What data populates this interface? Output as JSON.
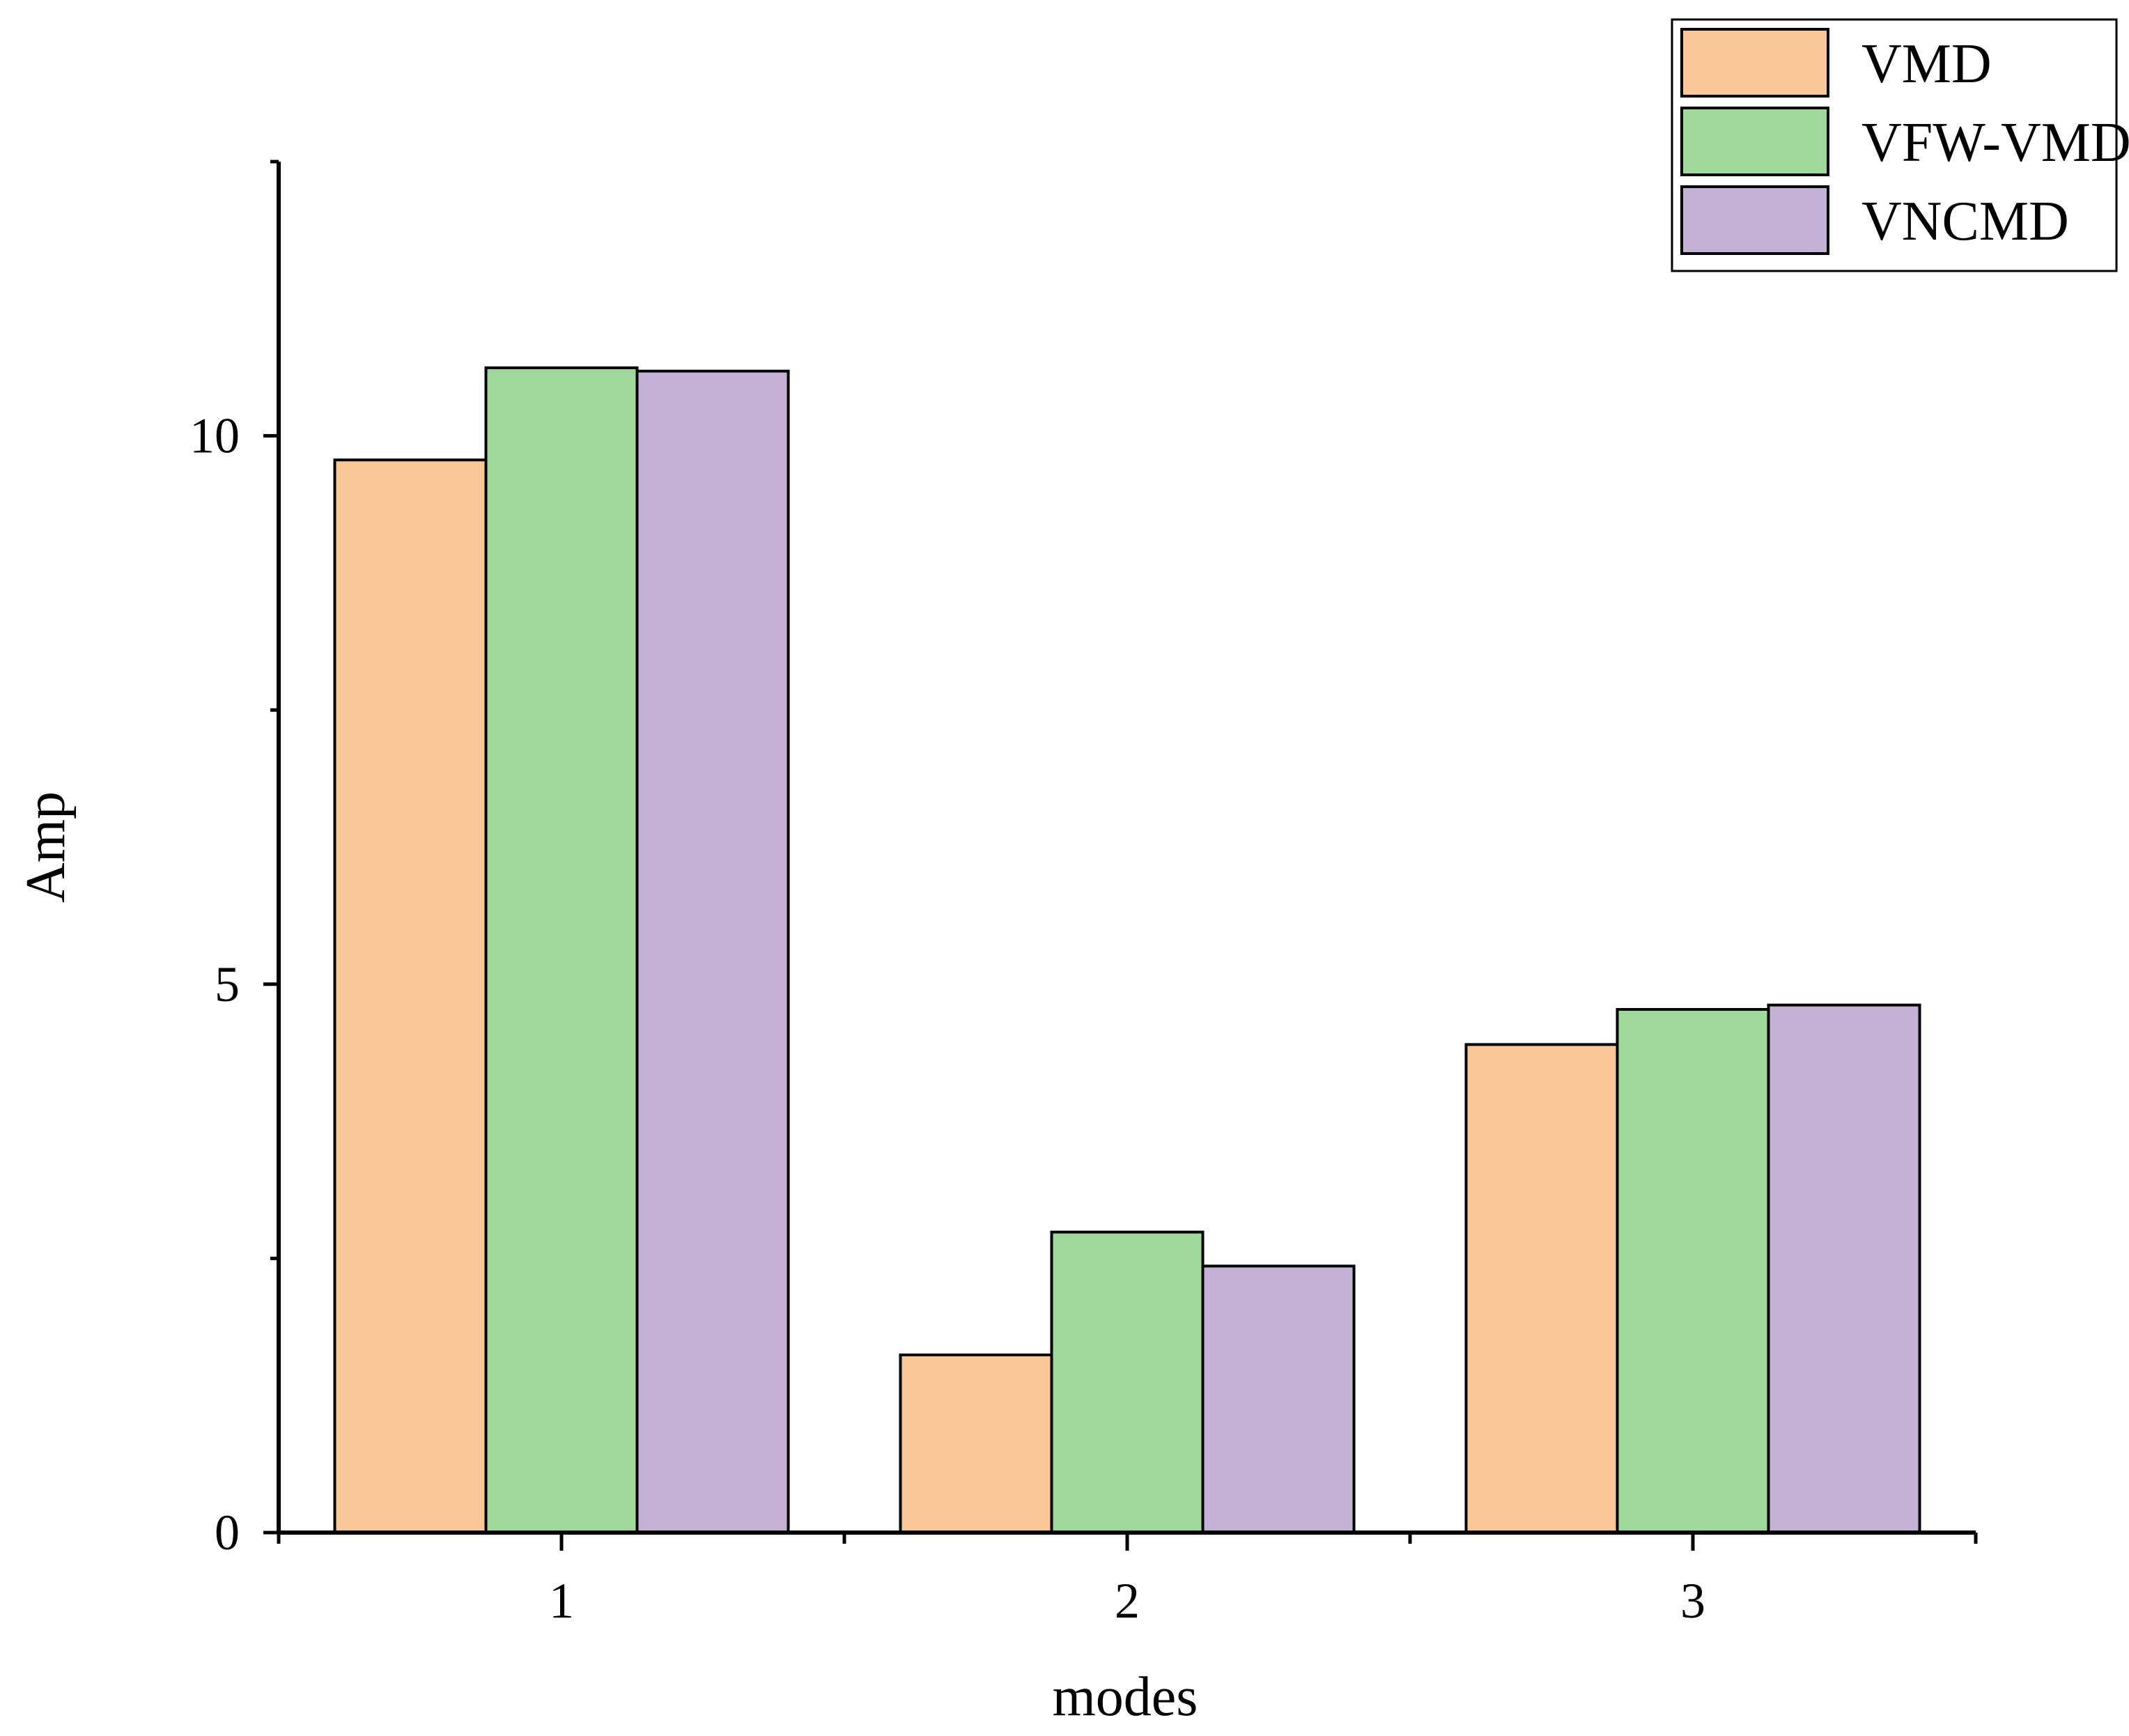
{
  "chart_data": {
    "type": "bar",
    "categories": [
      "1",
      "2",
      "3"
    ],
    "series": [
      {
        "name": "VMD",
        "values": [
          9.78,
          1.62,
          4.45
        ],
        "color": "#FAC898"
      },
      {
        "name": "VFW-VMD",
        "values": [
          10.62,
          2.74,
          4.77
        ],
        "color": "#9ED89B"
      },
      {
        "name": "VNCMD",
        "values": [
          10.59,
          2.43,
          4.81
        ],
        "color": "#C3B2D6"
      }
    ],
    "title": "",
    "xlabel": "modes",
    "ylabel": "Amp",
    "ylim": [
      0,
      12.5
    ],
    "yticks": [
      0,
      5,
      10
    ],
    "yticks_minor": [
      2.5,
      7.5,
      12.5
    ],
    "grid": false,
    "legend_position": "top-right"
  }
}
